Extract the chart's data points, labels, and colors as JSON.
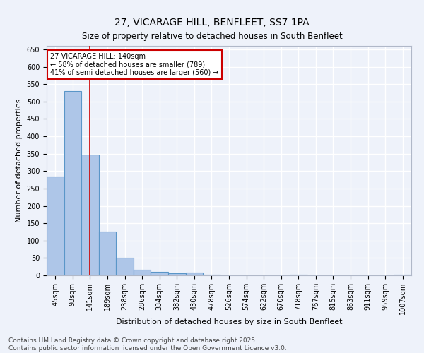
{
  "title": "27, VICARAGE HILL, BENFLEET, SS7 1PA",
  "subtitle": "Size of property relative to detached houses in South Benfleet",
  "xlabel": "Distribution of detached houses by size in South Benfleet",
  "ylabel": "Number of detached properties",
  "categories": [
    "45sqm",
    "93sqm",
    "141sqm",
    "189sqm",
    "238sqm",
    "286sqm",
    "334sqm",
    "382sqm",
    "430sqm",
    "478sqm",
    "526sqm",
    "574sqm",
    "622sqm",
    "670sqm",
    "718sqm",
    "767sqm",
    "815sqm",
    "863sqm",
    "911sqm",
    "959sqm",
    "1007sqm"
  ],
  "values": [
    285,
    530,
    348,
    125,
    50,
    17,
    10,
    6,
    9,
    3,
    0,
    0,
    0,
    0,
    3,
    0,
    0,
    0,
    0,
    0,
    2
  ],
  "bar_color": "#aec6e8",
  "bar_edge_color": "#5a96c8",
  "vline_x": 2,
  "vline_color": "#cc0000",
  "annotation_text": "27 VICARAGE HILL: 140sqm\n← 58% of detached houses are smaller (789)\n41% of semi-detached houses are larger (560) →",
  "annotation_box_color": "#ffffff",
  "annotation_box_edge_color": "#cc0000",
  "ylim": [
    0,
    660
  ],
  "yticks": [
    0,
    50,
    100,
    150,
    200,
    250,
    300,
    350,
    400,
    450,
    500,
    550,
    600,
    650
  ],
  "background_color": "#eef2fa",
  "grid_color": "#ffffff",
  "footer": "Contains HM Land Registry data © Crown copyright and database right 2025.\nContains public sector information licensed under the Open Government Licence v3.0.",
  "title_fontsize": 10,
  "subtitle_fontsize": 8.5,
  "label_fontsize": 8,
  "tick_fontsize": 7,
  "footer_fontsize": 6.5
}
